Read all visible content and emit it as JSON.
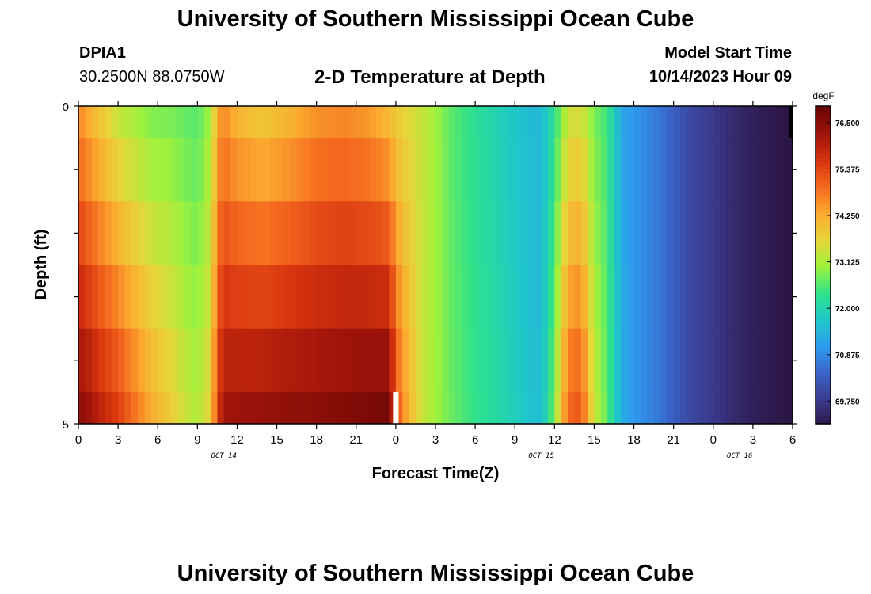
{
  "title": "University of Southern Mississippi Ocean Cube",
  "station": "DPIA1",
  "coords": "30.2500N  88.0750W",
  "subtitle": "2-D Temperature at Depth",
  "start_line1": "Model Start Time",
  "start_line2": "10/14/2023 Hour 09",
  "bottom_title": "University of Southern Mississippi Ocean Cube",
  "chart_data": {
    "type": "heatmap",
    "xlabel": "Forecast Time(Z)",
    "ylabel": "Depth (ft)",
    "x_tick_labels": [
      "0",
      "3",
      "6",
      "9",
      "12",
      "15",
      "18",
      "21",
      "0",
      "3",
      "6",
      "9",
      "12",
      "15",
      "18",
      "21",
      "0",
      "3",
      "6"
    ],
    "date_labels": [
      {
        "text": "OCT 14",
        "at_hour": 11
      },
      {
        "text": "OCT 15",
        "at_hour": 35
      },
      {
        "text": "OCT 16",
        "at_hour": 50
      }
    ],
    "y_tick_labels": [
      "0",
      "5"
    ],
    "xlim_hours": [
      0,
      54
    ],
    "ylim_ft": [
      0,
      5
    ],
    "colorbar": {
      "unit": "degF",
      "min": 69.2,
      "max": 76.9,
      "ticks": [
        "76.500",
        "75.375",
        "74.250",
        "73.125",
        "72.000",
        "70.875",
        "69.750"
      ],
      "colors": [
        "#2c1544",
        "#3b3b8f",
        "#3a64c9",
        "#2e9bf0",
        "#1fc8c8",
        "#2fe28a",
        "#9ef23c",
        "#e6d63a",
        "#fbab2f",
        "#f56a1f",
        "#d8340f",
        "#a0140a",
        "#6a0505"
      ]
    },
    "depth_bands_ft": [
      [
        0,
        0.5
      ],
      [
        0.5,
        1.5
      ],
      [
        1.5,
        2.5
      ],
      [
        2.5,
        3.5
      ],
      [
        3.5,
        4.5
      ],
      [
        4.5,
        5
      ]
    ],
    "time_profile": {
      "hours": [
        0,
        1,
        2,
        3,
        4,
        5,
        6,
        7,
        8,
        9,
        10,
        10.5,
        11,
        12,
        14,
        16,
        18,
        20,
        22,
        23.5,
        24,
        25,
        26,
        27,
        28,
        30,
        32,
        34,
        35,
        36,
        37,
        38,
        39,
        40,
        41,
        42,
        43,
        44,
        45,
        46,
        48,
        50,
        52,
        54
      ],
      "surface": [
        74.6,
        74.1,
        73.7,
        73.3,
        73.1,
        72.9,
        72.8,
        72.8,
        72.7,
        72.6,
        73.1,
        74.3,
        74.6,
        74.1,
        73.8,
        74.1,
        74.5,
        74.6,
        74.4,
        74.0,
        73.8,
        73.6,
        73.4,
        73.1,
        72.7,
        72.3,
        71.9,
        71.6,
        71.5,
        72.3,
        73.4,
        73.5,
        72.8,
        72.5,
        71.3,
        71.1,
        70.9,
        70.7,
        70.4,
        70.1,
        69.8,
        69.5,
        69.3,
        69.2
      ],
      "bottom": [
        76.6,
        76.3,
        75.9,
        75.6,
        75.1,
        74.6,
        74.2,
        73.9,
        73.5,
        73.2,
        73.8,
        75.6,
        76.3,
        76.4,
        76.5,
        76.6,
        76.6,
        76.7,
        76.8,
        76.9,
        75.4,
        74.2,
        73.4,
        73.1,
        72.8,
        72.4,
        72.1,
        71.7,
        71.6,
        72.9,
        75.1,
        75.3,
        73.4,
        72.7,
        71.4,
        71.1,
        70.9,
        70.7,
        70.4,
        70.1,
        69.8,
        69.5,
        69.3,
        69.2
      ]
    },
    "marks": [
      {
        "kind": "white-bar",
        "hour": 24,
        "depth_ft": [
          4.5,
          5
        ]
      },
      {
        "kind": "black-bar",
        "hour": 54,
        "depth_ft": [
          0,
          0.5
        ]
      }
    ]
  }
}
